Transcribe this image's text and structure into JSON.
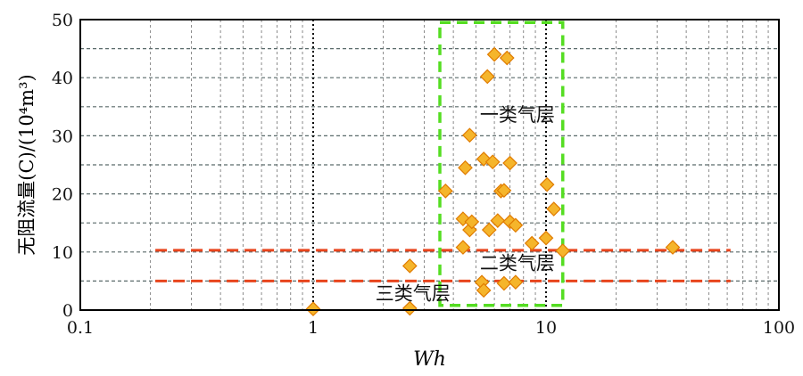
{
  "chart_data": {
    "type": "scatter",
    "xlabel": "Wh",
    "ylabel": "无阻流量(C)/(10⁴m³)",
    "xscale": "log",
    "xlim": [
      0.1,
      100
    ],
    "ylim": [
      0,
      50
    ],
    "x_ticks": [
      0.1,
      1,
      10,
      100
    ],
    "x_tick_labels": [
      "0.1",
      "1",
      "10",
      "100"
    ],
    "y_ticks": [
      0,
      10,
      20,
      30,
      40,
      50
    ],
    "y_tick_labels": [
      "0",
      "10",
      "20",
      "30",
      "40",
      "50"
    ],
    "grid": true,
    "marker": "diamond",
    "colors": {
      "marker_fill": "#f5b52b",
      "marker_edge": "#e07b00",
      "threshold_line": "#e8441c",
      "class1_box": "#55dd22",
      "vertical_ref": "#000000",
      "grid": "#8a8a8a"
    },
    "points": [
      {
        "x": 1.0,
        "y": 0.2
      },
      {
        "x": 2.6,
        "y": 0.3
      },
      {
        "x": 2.6,
        "y": 7.6
      },
      {
        "x": 3.7,
        "y": 20.5
      },
      {
        "x": 4.4,
        "y": 15.7
      },
      {
        "x": 4.4,
        "y": 10.8
      },
      {
        "x": 4.5,
        "y": 24.5
      },
      {
        "x": 4.7,
        "y": 30.1
      },
      {
        "x": 4.7,
        "y": 13.8
      },
      {
        "x": 4.8,
        "y": 15.2
      },
      {
        "x": 5.3,
        "y": 4.8
      },
      {
        "x": 5.4,
        "y": 3.4
      },
      {
        "x": 5.4,
        "y": 26.0
      },
      {
        "x": 5.6,
        "y": 40.2
      },
      {
        "x": 5.7,
        "y": 13.8
      },
      {
        "x": 5.9,
        "y": 25.5
      },
      {
        "x": 6.0,
        "y": 44.0
      },
      {
        "x": 6.2,
        "y": 15.4
      },
      {
        "x": 6.4,
        "y": 20.5
      },
      {
        "x": 6.6,
        "y": 20.6
      },
      {
        "x": 6.6,
        "y": 4.6
      },
      {
        "x": 6.8,
        "y": 43.4
      },
      {
        "x": 7.0,
        "y": 25.3
      },
      {
        "x": 7.0,
        "y": 15.2
      },
      {
        "x": 7.4,
        "y": 14.6
      },
      {
        "x": 7.4,
        "y": 4.8
      },
      {
        "x": 8.7,
        "y": 11.5
      },
      {
        "x": 10.0,
        "y": 12.4
      },
      {
        "x": 10.1,
        "y": 21.6
      },
      {
        "x": 10.8,
        "y": 17.4
      },
      {
        "x": 11.8,
        "y": 10.2
      },
      {
        "x": 35.0,
        "y": 10.8
      }
    ],
    "reference_lines": [
      {
        "orientation": "vertical",
        "x": 1,
        "y_range": [
          0,
          50
        ],
        "style": "dotted",
        "color": "#000000"
      },
      {
        "orientation": "vertical",
        "x": 10,
        "y_range": [
          0,
          50
        ],
        "style": "dotted",
        "color": "#000000"
      },
      {
        "orientation": "horizontal",
        "y": 10.3,
        "x_range": [
          0.21,
          62
        ],
        "style": "dashed",
        "color": "#e8441c"
      },
      {
        "orientation": "horizontal",
        "y": 5,
        "x_range": [
          0.21,
          62
        ],
        "style": "dashed",
        "color": "#e8441c"
      }
    ],
    "regions": [
      {
        "x_range": [
          3.5,
          11.8
        ],
        "y_range": [
          0.8,
          49.5
        ],
        "style": "dashed",
        "color": "#55dd22"
      }
    ],
    "annotations": [
      {
        "text": "一类气层",
        "x": 5.2,
        "y": 32.5
      },
      {
        "text": "二类气层",
        "x": 5.2,
        "y": 7.0
      },
      {
        "text": "三类气层",
        "x": 1.85,
        "y": 1.8
      }
    ]
  }
}
